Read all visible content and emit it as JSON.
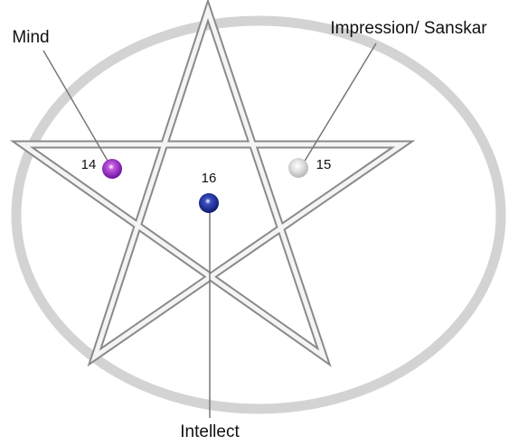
{
  "nodes": [
    {
      "label": "Mind",
      "number": "14"
    },
    {
      "label": "Impression/ Sanskar",
      "number": "15"
    },
    {
      "label": "Intellect",
      "number": "16"
    }
  ]
}
